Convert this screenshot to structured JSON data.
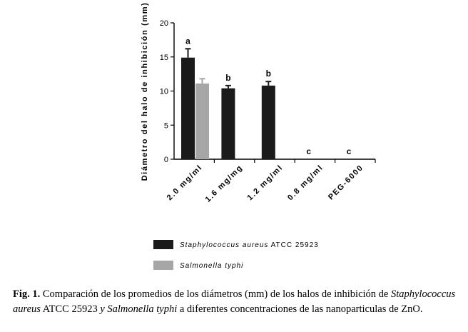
{
  "chart_data": {
    "type": "bar",
    "ylabel": "Diámetro del halo de inhibición (mm)",
    "ylim": [
      0,
      20
    ],
    "yticks": [
      0,
      5,
      10,
      15,
      20
    ],
    "categories": [
      "2.0 mg/ml",
      "1.6 mg/mg",
      "1.2 mg/ml",
      "0.8 mg/ml",
      "PEG-6000"
    ],
    "series": [
      {
        "name_parts": [
          "Staphylococcus aureus",
          " ATCC 25923"
        ],
        "color": "#1a1a1a",
        "values": [
          14.9,
          10.4,
          10.8,
          0,
          0
        ],
        "errors": [
          1.3,
          0.4,
          0.6,
          0,
          0
        ]
      },
      {
        "name_parts": [
          "Salmonella typhi",
          ""
        ],
        "color": "#a6a6a6",
        "values": [
          11.1,
          null,
          null,
          null,
          null
        ],
        "errors": [
          0.7,
          null,
          null,
          null,
          null
        ]
      }
    ],
    "significance": [
      "a",
      "b",
      "b",
      "c",
      "c"
    ],
    "grid": false,
    "legend_position": "bottom"
  },
  "caption": {
    "label": "Fig. 1.",
    "text1": " Comparación de los promedios de los diámetros (mm) de los halos de inhibición de ",
    "ital1": "Staphylococcus aureus",
    "text2": " ATCC 25923 ",
    "ital2": "y Salmonella typhi",
    "text3": " a diferentes concentraciones de las nanoparticulas de ZnO."
  }
}
